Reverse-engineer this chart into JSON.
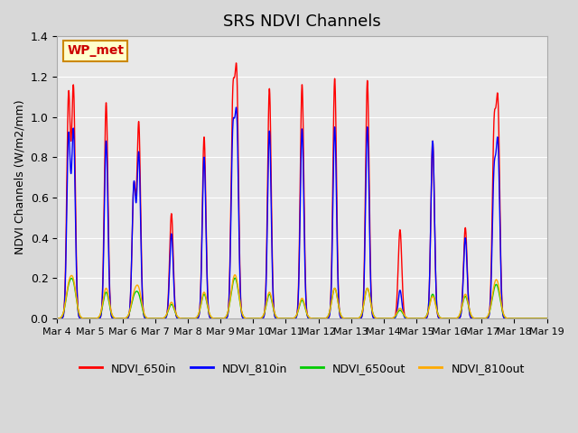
{
  "title": "SRS NDVI Channels",
  "ylabel": "NDVI Channels (W/m2/mm)",
  "ylim": [
    0,
    1.4
  ],
  "bg_color": "#e8e8e8",
  "fig_bg_color": "#d8d8d8",
  "legend_entries": [
    "NDVI_650in",
    "NDVI_810in",
    "NDVI_650out",
    "NDVI_810out"
  ],
  "legend_colors": [
    "#ff0000",
    "#0000ff",
    "#00cc00",
    "#ffaa00"
  ],
  "site_label": "WP_met",
  "site_label_color": "#cc0000",
  "site_label_bg": "#ffffcc",
  "site_label_border": "#cc8800",
  "xtick_labels": [
    "Mar 4",
    "Mar 5",
    "Mar 6",
    "Mar 7",
    "Mar 8",
    "Mar 9",
    "Mar 10",
    "Mar 11",
    "Mar 12",
    "Mar 13",
    "Mar 14",
    "Mar 15",
    "Mar 16",
    "Mar 17",
    "Mar 18",
    "Mar 19"
  ],
  "total_days": 15,
  "grid_color": "#ffffff",
  "line_width": 1.0,
  "peak_data": [
    [
      0,
      1.13,
      0.92,
      0.15,
      0.16,
      0.5
    ],
    [
      1,
      1.07,
      0.88,
      0.13,
      0.15,
      0.5
    ],
    [
      2,
      0.96,
      0.81,
      0.1,
      0.13,
      0.5
    ],
    [
      3,
      0.52,
      0.42,
      0.07,
      0.08,
      0.5
    ],
    [
      4,
      0.9,
      0.8,
      0.12,
      0.13,
      0.5
    ],
    [
      5,
      1.14,
      0.94,
      0.13,
      0.14,
      0.5
    ],
    [
      6,
      1.14,
      0.93,
      0.12,
      0.13,
      0.5
    ],
    [
      7,
      1.16,
      0.94,
      0.09,
      0.1,
      0.5
    ],
    [
      8,
      1.19,
      0.95,
      0.15,
      0.15,
      0.5
    ],
    [
      9,
      1.18,
      0.95,
      0.15,
      0.15,
      0.5
    ],
    [
      10,
      0.44,
      0.14,
      0.04,
      0.05,
      0.5
    ],
    [
      11,
      0.88,
      0.88,
      0.12,
      0.11,
      0.5
    ],
    [
      12,
      0.45,
      0.4,
      0.11,
      0.12,
      0.5
    ],
    [
      13,
      1.01,
      0.82,
      0.11,
      0.13,
      0.5
    ]
  ],
  "extra_peaks": [
    [
      0,
      1.1,
      0.9,
      0.13,
      0.14,
      0.35
    ],
    [
      2,
      0.65,
      0.66,
      0.09,
      0.1,
      0.35
    ],
    [
      5,
      1.04,
      0.87,
      0.12,
      0.13,
      0.38
    ],
    [
      13,
      0.9,
      0.68,
      0.1,
      0.11,
      0.38
    ]
  ],
  "sigma_narrow": 0.055,
  "sigma_wide": 0.09
}
